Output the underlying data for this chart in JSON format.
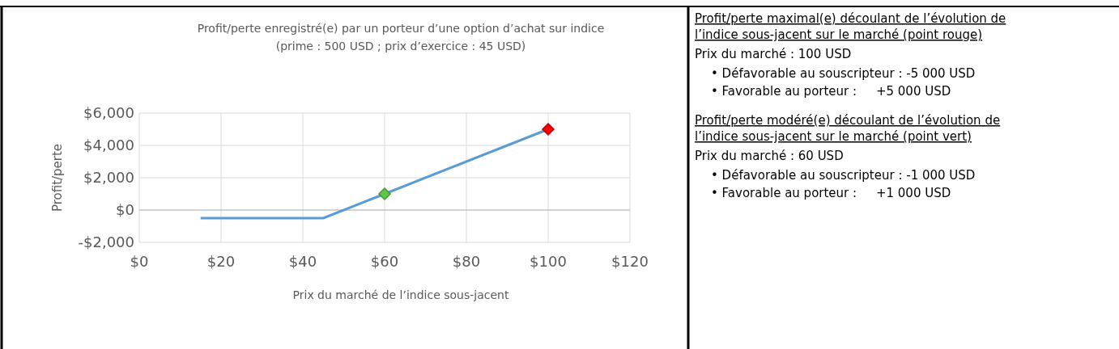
{
  "chart_data": [
    {
      "type": "line",
      "title": "Profit/perte enregistré(e) par un porteur d’une option d’achat sur indice",
      "subtitle": "(prime : 500 USD ; prix d’exercice : 45 USD)",
      "xlabel": "Prix du marché de l’indice sous-jacent",
      "ylabel": "Profit/perte",
      "xlim": [
        0,
        120
      ],
      "xticks": [
        {
          "value": 0,
          "label": "$0"
        },
        {
          "value": 20,
          "label": "$20"
        },
        {
          "value": 40,
          "label": "$40"
        },
        {
          "value": 60,
          "label": "$60"
        },
        {
          "value": 80,
          "label": "$80"
        },
        {
          "value": 100,
          "label": "$100"
        },
        {
          "value": 120,
          "label": "$120"
        }
      ],
      "ylim": [
        -2000,
        6000
      ],
      "yticks": [
        {
          "value": -2000,
          "label": "-$2,000"
        },
        {
          "value": 0,
          "label": "$0"
        },
        {
          "value": 2000,
          "label": "$2,000"
        },
        {
          "value": 4000,
          "label": "$4,000"
        },
        {
          "value": 6000,
          "label": "$6,000"
        }
      ],
      "grid": true,
      "series": [
        {
          "type": "line",
          "color": "#5b9bd5",
          "x": [
            15,
            45,
            60,
            100
          ],
          "values": [
            -500,
            -500,
            1000,
            5000
          ],
          "marker": "none"
        },
        {
          "type": "scatter",
          "color": "#5ec846",
          "x": [
            60
          ],
          "values": [
            1000
          ],
          "marker": "diamond"
        },
        {
          "type": "scatter",
          "color": "#ff0000",
          "x": [
            100
          ],
          "values": [
            5000
          ],
          "marker": "diamond"
        }
      ]
    },
    {
      "type": "other",
      "annotations": [
        "Profit/perte maximal(e) découlant de l’évolution de l’indice sous-jacent sur le marché (point rouge)",
        "Prix du marché : 100 USD",
        "• Défavorable au souscripteur : -5 000 USD",
        "• Favorable au porteur :     +5 000 USD",
        "Profit/perte modéré(e) découlant de l’évolution de l’indice sous-jacent sur le marché (point vert)",
        "Prix du marché : 60 USD",
        "• Défavorable au souscripteur : -1 000 USD",
        "• Favorable au porteur :     +1 000 USD"
      ]
    }
  ]
}
